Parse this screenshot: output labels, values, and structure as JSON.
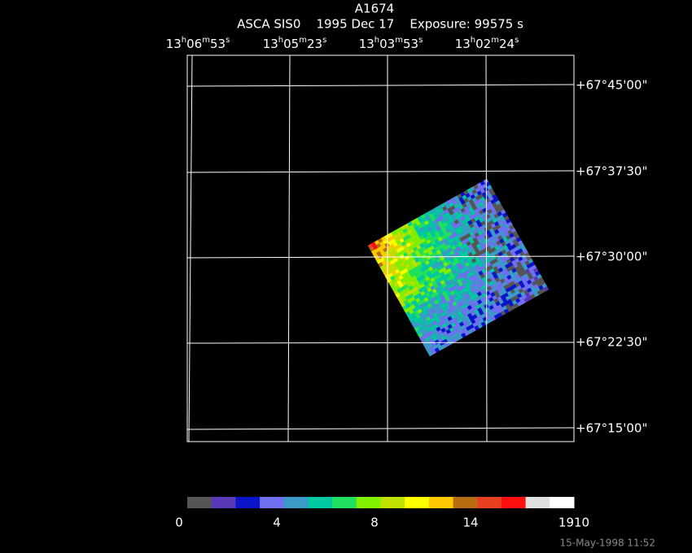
{
  "header": {
    "title": "A1674",
    "subtitle": "ASCA SIS0    1995 Dec 17    Exposure: 99575 s"
  },
  "ra_labels": [
    "13h06m53s",
    "13h05m23s",
    "13h03m53s",
    "13h02m24s"
  ],
  "dec_labels": [
    "+67°45'00\"",
    "+67°37'30\"",
    "+67°30'00\"",
    "+67°22'30\"",
    "+67°15'00\""
  ],
  "colorbar": {
    "colors": [
      "#555555",
      "#5a38b8",
      "#0a14c8",
      "#7070f0",
      "#3c9ac8",
      "#00c8a0",
      "#20e060",
      "#80f000",
      "#c0e000",
      "#ffff00",
      "#ffc800",
      "#b86e10",
      "#e84020",
      "#ff1010",
      "#e0e0e0",
      "#ffffff"
    ],
    "labels": [
      "0",
      "4",
      "8",
      "14",
      "1910"
    ]
  },
  "footer": {
    "timestamp": "15-May-1998 11:52"
  }
}
